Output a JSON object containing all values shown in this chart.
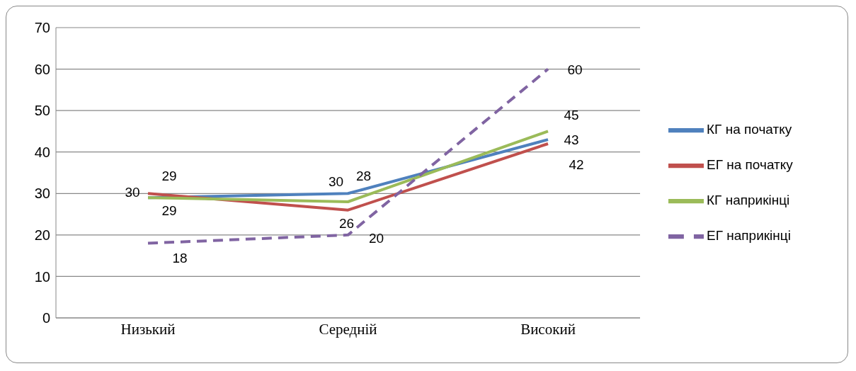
{
  "chart_data": {
    "type": "line",
    "categories": [
      "Низький",
      "Середній",
      "Високий"
    ],
    "series": [
      {
        "name": "КГ на початку",
        "color": "#4f81bd",
        "values": [
          29,
          30,
          43
        ]
      },
      {
        "name": "ЕГ на початку",
        "color": "#c0504d",
        "values": [
          30,
          26,
          42
        ]
      },
      {
        "name": "КГ наприкінці",
        "color": "#9bbb59",
        "values": [
          29,
          28,
          45
        ]
      },
      {
        "name": "ЕГ наприкінці",
        "color": "#8064a2",
        "values": [
          18,
          20,
          60
        ],
        "line_style": "dashed"
      }
    ],
    "ylim": [
      0,
      70
    ],
    "yticks": [
      0,
      10,
      20,
      30,
      40,
      50,
      60,
      70
    ],
    "grid": "y",
    "legend": "right",
    "data_labels": true,
    "marker": "none",
    "line_style": "solid"
  }
}
